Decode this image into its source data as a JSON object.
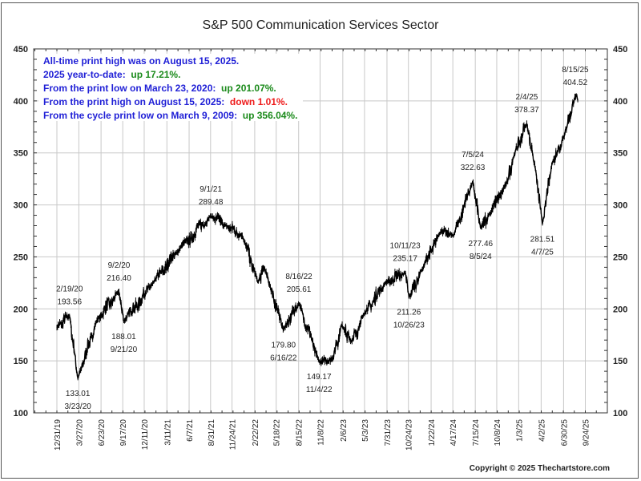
{
  "chart_data": {
    "type": "line",
    "title": "S&P 500 Communication Services Sector",
    "xlabel": "",
    "ylabel": "",
    "ylim": [
      100,
      450
    ],
    "yticks": [
      100,
      150,
      200,
      250,
      300,
      350,
      400,
      450
    ],
    "grid": true,
    "xtick_labels": [
      "12/31/19",
      "3/27/20",
      "6/23/20",
      "9/17/20",
      "12/11/20",
      "3/11/21",
      "6/7/21",
      "8/31/21",
      "11/24/21",
      "2/22/22",
      "5/18/22",
      "8/15/22",
      "11/8/22",
      "2/6/23",
      "5/3/23",
      "7/31/23",
      "10/24/23",
      "1/22/24",
      "4/17/24",
      "7/15/24",
      "10/8/24",
      "1/3/25",
      "4/2/25",
      "6/30/25",
      "9/24/25"
    ],
    "series": [
      {
        "name": "S&P 500 Communication Services Sector",
        "key_points": [
          {
            "date": "12/31/19",
            "value": 182
          },
          {
            "date": "2/19/20",
            "value": 193.56
          },
          {
            "date": "3/23/20",
            "value": 133.01
          },
          {
            "date": "6/8/20",
            "value": 190
          },
          {
            "date": "9/2/20",
            "value": 216.4
          },
          {
            "date": "9/21/20",
            "value": 188.01
          },
          {
            "date": "1/15/21",
            "value": 225
          },
          {
            "date": "5/1/21",
            "value": 258
          },
          {
            "date": "9/1/21",
            "value": 289.48
          },
          {
            "date": "11/1/21",
            "value": 280
          },
          {
            "date": "1/5/22",
            "value": 270
          },
          {
            "date": "3/7/22",
            "value": 225
          },
          {
            "date": "4/1/22",
            "value": 240
          },
          {
            "date": "6/16/22",
            "value": 179.8
          },
          {
            "date": "8/16/22",
            "value": 205.61
          },
          {
            "date": "11/4/22",
            "value": 149.17
          },
          {
            "date": "12/28/22",
            "value": 152
          },
          {
            "date": "2/2/23",
            "value": 185
          },
          {
            "date": "3/13/23",
            "value": 168
          },
          {
            "date": "5/1/23",
            "value": 195
          },
          {
            "date": "7/25/23",
            "value": 225
          },
          {
            "date": "10/11/23",
            "value": 235.17
          },
          {
            "date": "10/26/23",
            "value": 211.26
          },
          {
            "date": "12/15/23",
            "value": 237
          },
          {
            "date": "3/1/24",
            "value": 275
          },
          {
            "date": "4/19/24",
            "value": 270
          },
          {
            "date": "7/5/24",
            "value": 322.63
          },
          {
            "date": "8/5/24",
            "value": 277.46
          },
          {
            "date": "9/6/24",
            "value": 290
          },
          {
            "date": "11/15/24",
            "value": 320
          },
          {
            "date": "12/16/24",
            "value": 348
          },
          {
            "date": "2/4/25",
            "value": 378.37
          },
          {
            "date": "3/10/25",
            "value": 335
          },
          {
            "date": "4/7/25",
            "value": 281.51
          },
          {
            "date": "5/15/25",
            "value": 340
          },
          {
            "date": "6/30/25",
            "value": 365
          },
          {
            "date": "8/15/25",
            "value": 404.52
          },
          {
            "date": "8/25/25",
            "value": 400.4
          }
        ]
      }
    ],
    "annotations": [
      {
        "date_label": "2/19/20",
        "value_label": "193.56",
        "position": "above"
      },
      {
        "date_label": "3/23/20",
        "value_label": "133.01",
        "position": "below"
      },
      {
        "date_label": "9/2/20",
        "value_label": "216.40",
        "position": "above"
      },
      {
        "date_label": "9/21/20",
        "value_label": "188.01",
        "position": "below"
      },
      {
        "date_label": "9/1/21",
        "value_label": "289.48",
        "position": "above"
      },
      {
        "date_label": "6/16/22",
        "value_label": "179.80",
        "position": "below"
      },
      {
        "date_label": "8/16/22",
        "value_label": "205.61",
        "position": "above"
      },
      {
        "date_label": "11/4/22",
        "value_label": "149.17",
        "position": "below"
      },
      {
        "date_label": "10/11/23",
        "value_label": "235.17",
        "position": "above"
      },
      {
        "date_label": "10/26/23",
        "value_label": "211.26",
        "position": "below"
      },
      {
        "date_label": "7/5/24",
        "value_label": "322.63",
        "position": "above"
      },
      {
        "date_label": "8/5/24",
        "value_label": "277.46",
        "position": "below"
      },
      {
        "date_label": "2/4/25",
        "value_label": "378.37",
        "position": "above"
      },
      {
        "date_label": "4/7/25",
        "value_label": "281.51",
        "position": "below"
      },
      {
        "date_label": "8/15/25",
        "value_label": "404.52",
        "position": "above"
      }
    ],
    "info_box": [
      {
        "parts": [
          {
            "text": "All-time print high was on August 15, 2025.",
            "color": "blue"
          }
        ]
      },
      {
        "parts": [
          {
            "text": "2025 year-to-date:  ",
            "color": "blue"
          },
          {
            "text": "up 17.21%.",
            "color": "green"
          }
        ]
      },
      {
        "parts": [
          {
            "text": "From the print low on March 23, 2020:  ",
            "color": "blue"
          },
          {
            "text": "up 201.07%.",
            "color": "green"
          }
        ]
      },
      {
        "parts": [
          {
            "text": "From the print high on August 15, 2025:  ",
            "color": "blue"
          },
          {
            "text": "down 1.01%.",
            "color": "red"
          }
        ]
      },
      {
        "parts": [
          {
            "text": "From the cycle print low on March 9, 2009:  ",
            "color": "blue"
          },
          {
            "text": "up 356.04%.",
            "color": "green"
          }
        ]
      }
    ],
    "copyright": "Copyright © 2025 Thechartstore.com"
  },
  "colors": {
    "blue": "#1f1fd6",
    "green": "#1a8a1a",
    "red": "#ee1c1c",
    "line": "#000000",
    "grid": "#c8c8c8",
    "text": "#222222"
  }
}
